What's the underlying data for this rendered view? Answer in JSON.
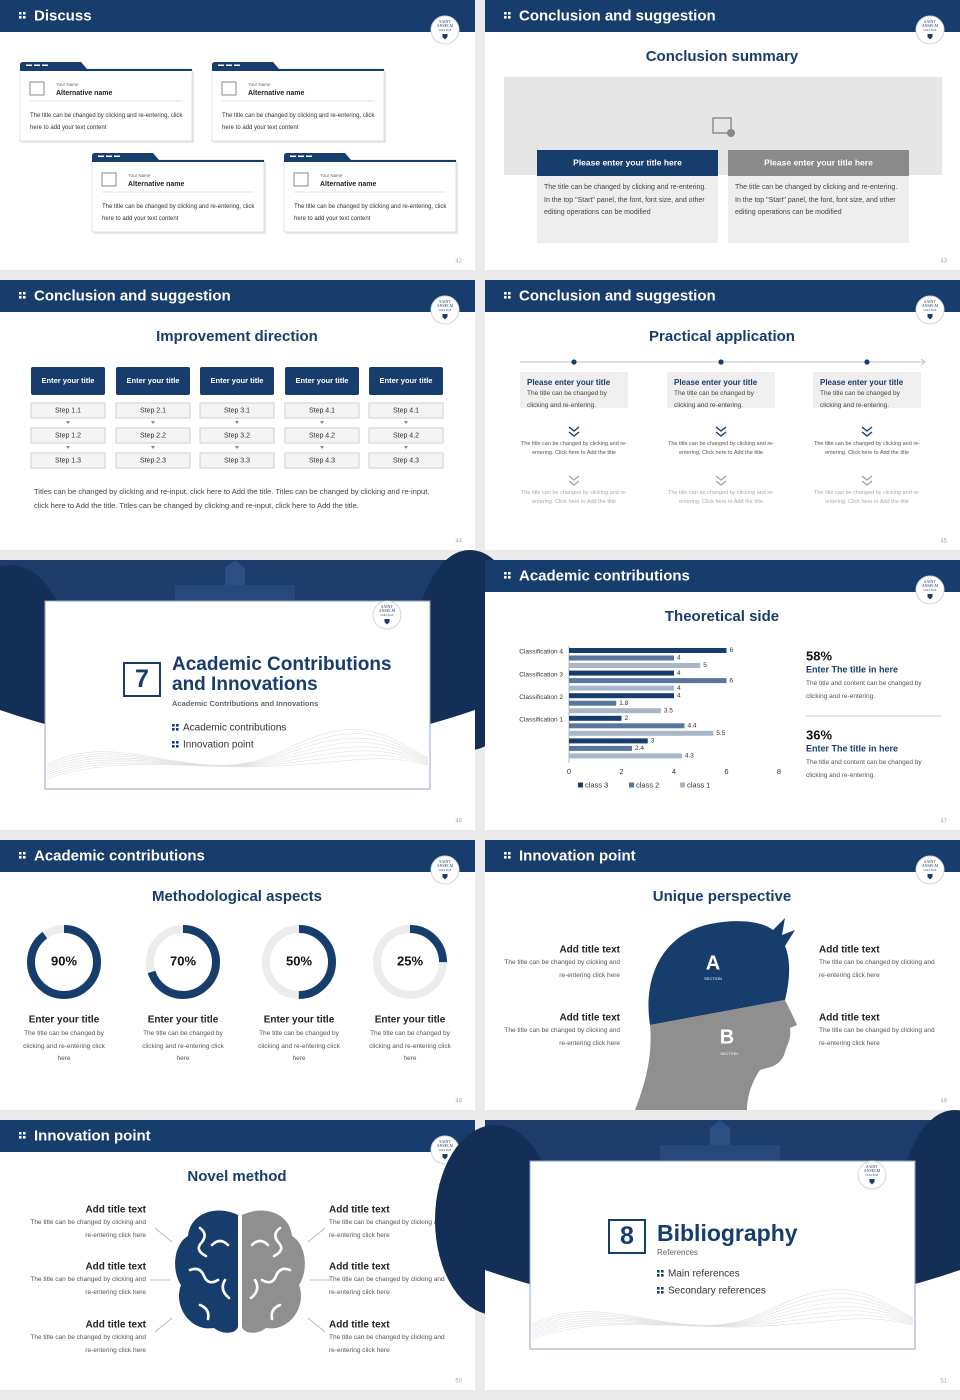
{
  "logo": [
    "SAINT",
    "ANSELM",
    "COLLEGE"
  ],
  "slides": [
    {
      "page": "42",
      "header": "Discuss",
      "cards": [
        {
          "label": "Your Name",
          "name": "Alternative name",
          "text": "The title can be changed by clicking and re-entering, click here to add your text content"
        },
        {
          "label": "Your Name",
          "name": "Alternative name",
          "text": "The title can be changed by clicking and re-entering, click here to add your text content"
        },
        {
          "label": "Your Name",
          "name": "Alternative name",
          "text": "The title can be changed by clicking and re-entering, click here to add your text content"
        },
        {
          "label": "Your Name",
          "name": "Alternative name",
          "text": "The title can be changed by clicking and re-entering, click here to add your text content"
        }
      ]
    },
    {
      "page": "43",
      "header": "Conclusion and suggestion",
      "title": "Conclusion summary",
      "panels": [
        {
          "title": "Please enter your title here",
          "text": "The title can be changed by clicking and re-entering. In the top \"Start\" panel, the font, font size, and other editing operations can be modified"
        },
        {
          "title": "Please enter your title here",
          "text": "The title can be changed by clicking and re-entering. In the top \"Start\" panel, the font, font size, and other editing operations can be modified"
        }
      ]
    },
    {
      "page": "44",
      "header": "Conclusion and suggestion",
      "title": "Improvement direction",
      "columns": [
        {
          "title": "Enter your title",
          "steps": [
            "Step 1.1",
            "Step 1.2",
            "Step 1.3"
          ]
        },
        {
          "title": "Enter your title",
          "steps": [
            "Step 2.1",
            "Step 2.2",
            "Step 2.3"
          ]
        },
        {
          "title": "Enter your title",
          "steps": [
            "Step 3.1",
            "Step 3.2",
            "Step 3.3"
          ]
        },
        {
          "title": "Enter your title",
          "steps": [
            "Step 4.1",
            "Step 4.2",
            "Step 4.3"
          ]
        },
        {
          "title": "Enter your title",
          "steps": [
            "Step 4.1",
            "Step 4.2",
            "Step 4.3"
          ]
        }
      ],
      "note": "Titles can be changed by clicking and re-input, click here to Add the title. Titles can be changed by clicking and re-input, click here to Add the title. Titles can be changed by clicking and re-input, click here to Add the title."
    },
    {
      "page": "45",
      "header": "Conclusion and suggestion",
      "title": "Practical application",
      "items": [
        {
          "title": "Please enter your title",
          "text": "The title can be changed by clicking and re-entering.",
          "details": [
            "The title can be changed by clicking and re-entering. Click here to Add the title",
            "The title can be changed by clicking and re-entering. Click here to Add the title"
          ]
        },
        {
          "title": "Please enter your title",
          "text": "The title can be changed by clicking and re-entering.",
          "details": [
            "The title can be changed by clicking and re-entering. Click here to Add the title",
            "The title can be changed by clicking and re-entering. Click here to Add the title"
          ]
        },
        {
          "title": "Please enter your title",
          "text": "The title can be changed by clicking and re-entering.",
          "details": [
            "The title can be changed by clicking and re-entering. Click here to Add the title",
            "The title can be changed by clicking and re-entering. Click here to Add the title"
          ]
        }
      ]
    },
    {
      "page": "46",
      "number": "7",
      "title": "Academic Contributions and Innovations",
      "subtitle": "Academic Contributions and Innovations",
      "items": [
        "Academic contributions",
        "Innovation point"
      ]
    },
    {
      "page": "47",
      "header": "Academic contributions",
      "title": "Theoretical side",
      "chart_data": {
        "type": "bar",
        "categories": [
          "Classification 4",
          "Classification 3",
          "Classification 2",
          "Classification 1",
          null
        ],
        "series": [
          {
            "name": "class 3",
            "color": "#173d6c",
            "values": [
              6,
              4,
              4,
              2,
              3
            ]
          },
          {
            "name": "class 2",
            "color": "#58779c",
            "values": [
              4,
              6,
              1.8,
              4.4,
              2.4
            ]
          },
          {
            "name": "class 1",
            "color": "#a8b6c9",
            "values": [
              5,
              4,
              3.5,
              5.5,
              4.3
            ]
          }
        ],
        "xlim": [
          0,
          8
        ],
        "xticks": [
          0,
          2,
          4,
          6,
          8
        ]
      },
      "stats": [
        {
          "value": "58%",
          "title": "Enter The title in here",
          "text": "The title and content can be changed by clicking and re-entering."
        },
        {
          "value": "36%",
          "title": "Enter The title in here",
          "text": "The title and content can be changed by clicking and re-entering."
        }
      ]
    },
    {
      "page": "48",
      "header": "Academic contributions",
      "title": "Methodological aspects",
      "chart_data": {
        "type": "donut",
        "values": [
          90,
          70,
          50,
          25
        ],
        "value_labels": [
          "90%",
          "70%",
          "50%",
          "25%"
        ],
        "ylim": [
          0,
          100
        ],
        "color": "#173d6c"
      },
      "items": [
        {
          "title": "Enter your title",
          "text": "The title can be changed by clicking and re-entering click here"
        },
        {
          "title": "Enter your title",
          "text": "The title can be changed by clicking and re-entering click here"
        },
        {
          "title": "Enter your title",
          "text": "The title can be changed by clicking and re-entering click here"
        },
        {
          "title": "Enter your title",
          "text": "The title can be changed by clicking and re-entering click here"
        }
      ]
    },
    {
      "page": "49",
      "header": "Innovation point",
      "title": "Unique perspective",
      "sections": [
        {
          "letter": "A",
          "label": "SECTION"
        },
        {
          "letter": "B",
          "label": "SECTION"
        }
      ],
      "left": [
        {
          "title": "Add title text",
          "text": "The title can be changed by clicking and re-entering click here"
        },
        {
          "title": "Add title text",
          "text": "The title can be changed by clicking and re-entering click here"
        }
      ],
      "right": [
        {
          "title": "Add title text",
          "text": "The title can be changed by clicking and re-entering click here"
        },
        {
          "title": "Add title text",
          "text": "The title can be changed by clicking and re-entering click here"
        }
      ]
    },
    {
      "page": "50",
      "header": "Innovation point",
      "title": "Novel method",
      "left": [
        {
          "title": "Add title text",
          "text": "The title can be changed by clicking and re-entering click here"
        },
        {
          "title": "Add title text",
          "text": "The title can be changed by clicking and re-entering click here"
        },
        {
          "title": "Add title text",
          "text": "The title can be changed by clicking and re-entering click here"
        }
      ],
      "right": [
        {
          "title": "Add title text",
          "text": "The title can be changed by clicking and re-entering click here"
        },
        {
          "title": "Add title text",
          "text": "The title can be changed by clicking and re-entering click here"
        },
        {
          "title": "Add title text",
          "text": "The title can be changed by clicking and re-entering click here"
        }
      ]
    },
    {
      "page": "51",
      "number": "8",
      "title": "Bibliography",
      "subtitle": "References",
      "items": [
        "Main references",
        "Secondary references"
      ]
    }
  ]
}
